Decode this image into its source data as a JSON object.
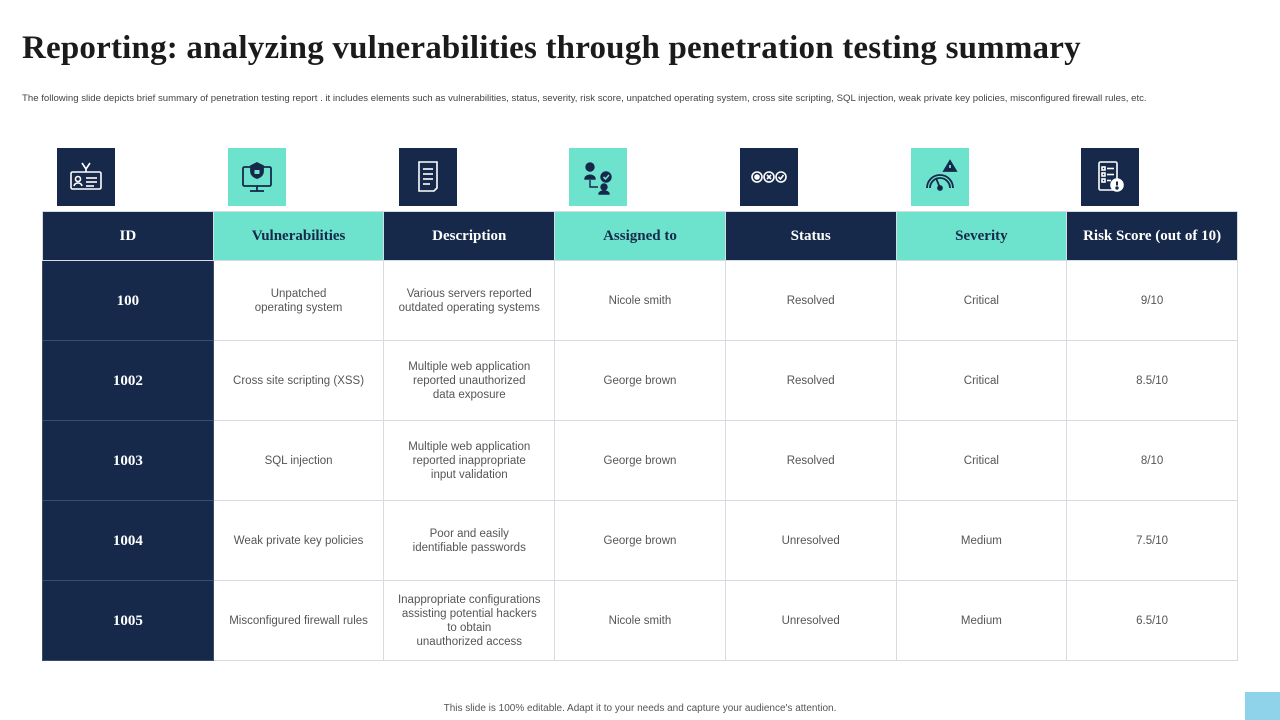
{
  "title": "Reporting: analyzing vulnerabilities through penetration testing summary",
  "subtitle": "The following slide depicts brief summary of penetration testing report . it includes elements such as vulnerabilities, status, severity, risk score, unpatched operating system, cross site scripting, SQL injection, weak private key policies, misconfigured firewall rules, etc.",
  "colors": {
    "navy": "#17294a",
    "mint": "#6de3cd",
    "corner_accent": "#8fd3ea"
  },
  "icons": [
    {
      "name": "id-card-icon",
      "bg": "navy"
    },
    {
      "name": "monitor-lock-icon",
      "bg": "mint"
    },
    {
      "name": "document-icon",
      "bg": "navy"
    },
    {
      "name": "user-assign-icon",
      "bg": "mint"
    },
    {
      "name": "status-icons-icon",
      "bg": "navy"
    },
    {
      "name": "gauge-alert-icon",
      "bg": "mint"
    },
    {
      "name": "checklist-alert-icon",
      "bg": "navy"
    }
  ],
  "table": {
    "headers": [
      "ID",
      "Vulnerabilities",
      "Description",
      "Assigned to",
      "Status",
      "Severity",
      "Risk Score (out of 10)"
    ],
    "rows": [
      {
        "id": "100",
        "vulnerability": "Unpatched\noperating system",
        "description": "Various servers reported\noutdated operating systems",
        "assigned_to": "Nicole smith",
        "status": "Resolved",
        "severity": "Critical",
        "risk_score": "9/10"
      },
      {
        "id": "1002",
        "vulnerability": "Cross site scripting (XSS)",
        "description": "Multiple web application\nreported unauthorized\ndata exposure",
        "assigned_to": "George brown",
        "status": "Resolved",
        "severity": "Critical",
        "risk_score": "8.5/10"
      },
      {
        "id": "1003",
        "vulnerability": "SQL injection",
        "description": "Multiple web application\nreported inappropriate\ninput validation",
        "assigned_to": "George brown",
        "status": "Resolved",
        "severity": "Critical",
        "risk_score": "8/10"
      },
      {
        "id": "1004",
        "vulnerability": "Weak private key policies",
        "description": "Poor and easily\nidentifiable passwords",
        "assigned_to": "George brown",
        "status": "Unresolved",
        "severity": "Medium",
        "risk_score": "7.5/10"
      },
      {
        "id": "1005",
        "vulnerability": "Misconfigured firewall rules",
        "description": "Inappropriate configurations\nassisting potential hackers\nto obtain\nunauthorized access",
        "assigned_to": "Nicole smith",
        "status": "Unresolved",
        "severity": "Medium",
        "risk_score": "6.5/10"
      }
    ]
  },
  "footer": "This slide is 100% editable. Adapt it to your needs and capture your audience's attention."
}
